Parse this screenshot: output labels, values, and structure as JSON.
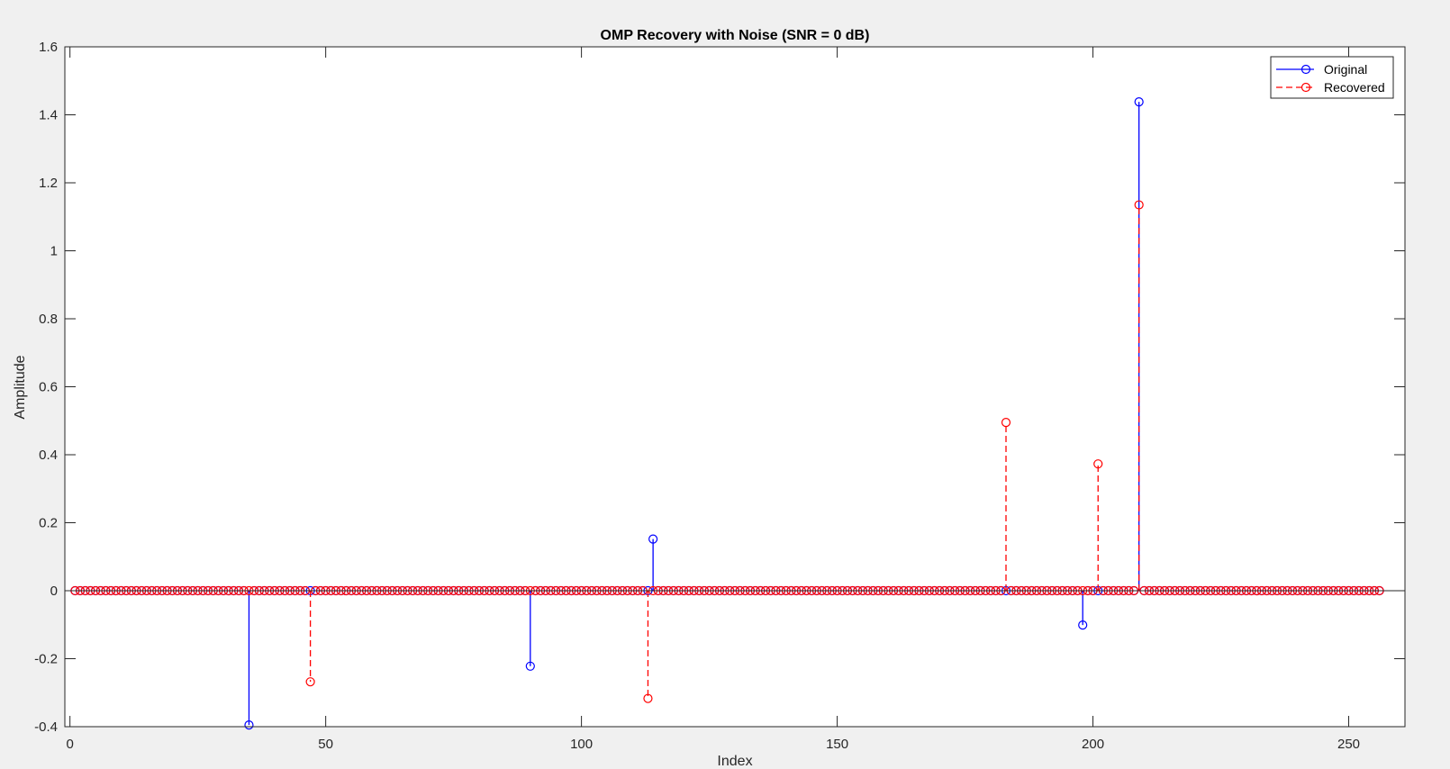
{
  "chart_data": {
    "type": "stem",
    "title": "OMP Recovery with Noise (SNR = 0 dB)",
    "xlabel": "Index",
    "ylabel": "Amplitude",
    "xlim": [
      -1,
      261
    ],
    "ylim": [
      -0.4,
      1.6
    ],
    "xticks": [
      0,
      50,
      100,
      150,
      200,
      250
    ],
    "yticks": [
      -0.4,
      -0.2,
      0,
      0.2,
      0.4,
      0.6,
      0.8,
      1,
      1.2,
      1.4,
      1.6
    ],
    "ytick_labels": [
      "-0.4",
      "-0.2",
      "0",
      "0.2",
      "0.4",
      "0.6",
      "0.8",
      "1",
      "1.2",
      "1.4",
      "1.6"
    ],
    "n": 256,
    "grid": false,
    "box": true,
    "legend_position": "top-right",
    "series": [
      {
        "name": "Original",
        "color": "#0000ff",
        "line_style": "solid",
        "marker": "circle",
        "nonzero": [
          {
            "x": 35,
            "y": -0.395
          },
          {
            "x": 90,
            "y": -0.222
          },
          {
            "x": 114,
            "y": 0.152
          },
          {
            "x": 198,
            "y": -0.101
          },
          {
            "x": 209,
            "y": 1.438
          }
        ]
      },
      {
        "name": "Recovered",
        "color": "#ff0000",
        "line_style": "dashed",
        "marker": "circle",
        "nonzero": [
          {
            "x": 47,
            "y": -0.268
          },
          {
            "x": 113,
            "y": -0.317
          },
          {
            "x": 183,
            "y": 0.495
          },
          {
            "x": 201,
            "y": 0.373
          },
          {
            "x": 209,
            "y": 1.135
          }
        ]
      }
    ]
  }
}
